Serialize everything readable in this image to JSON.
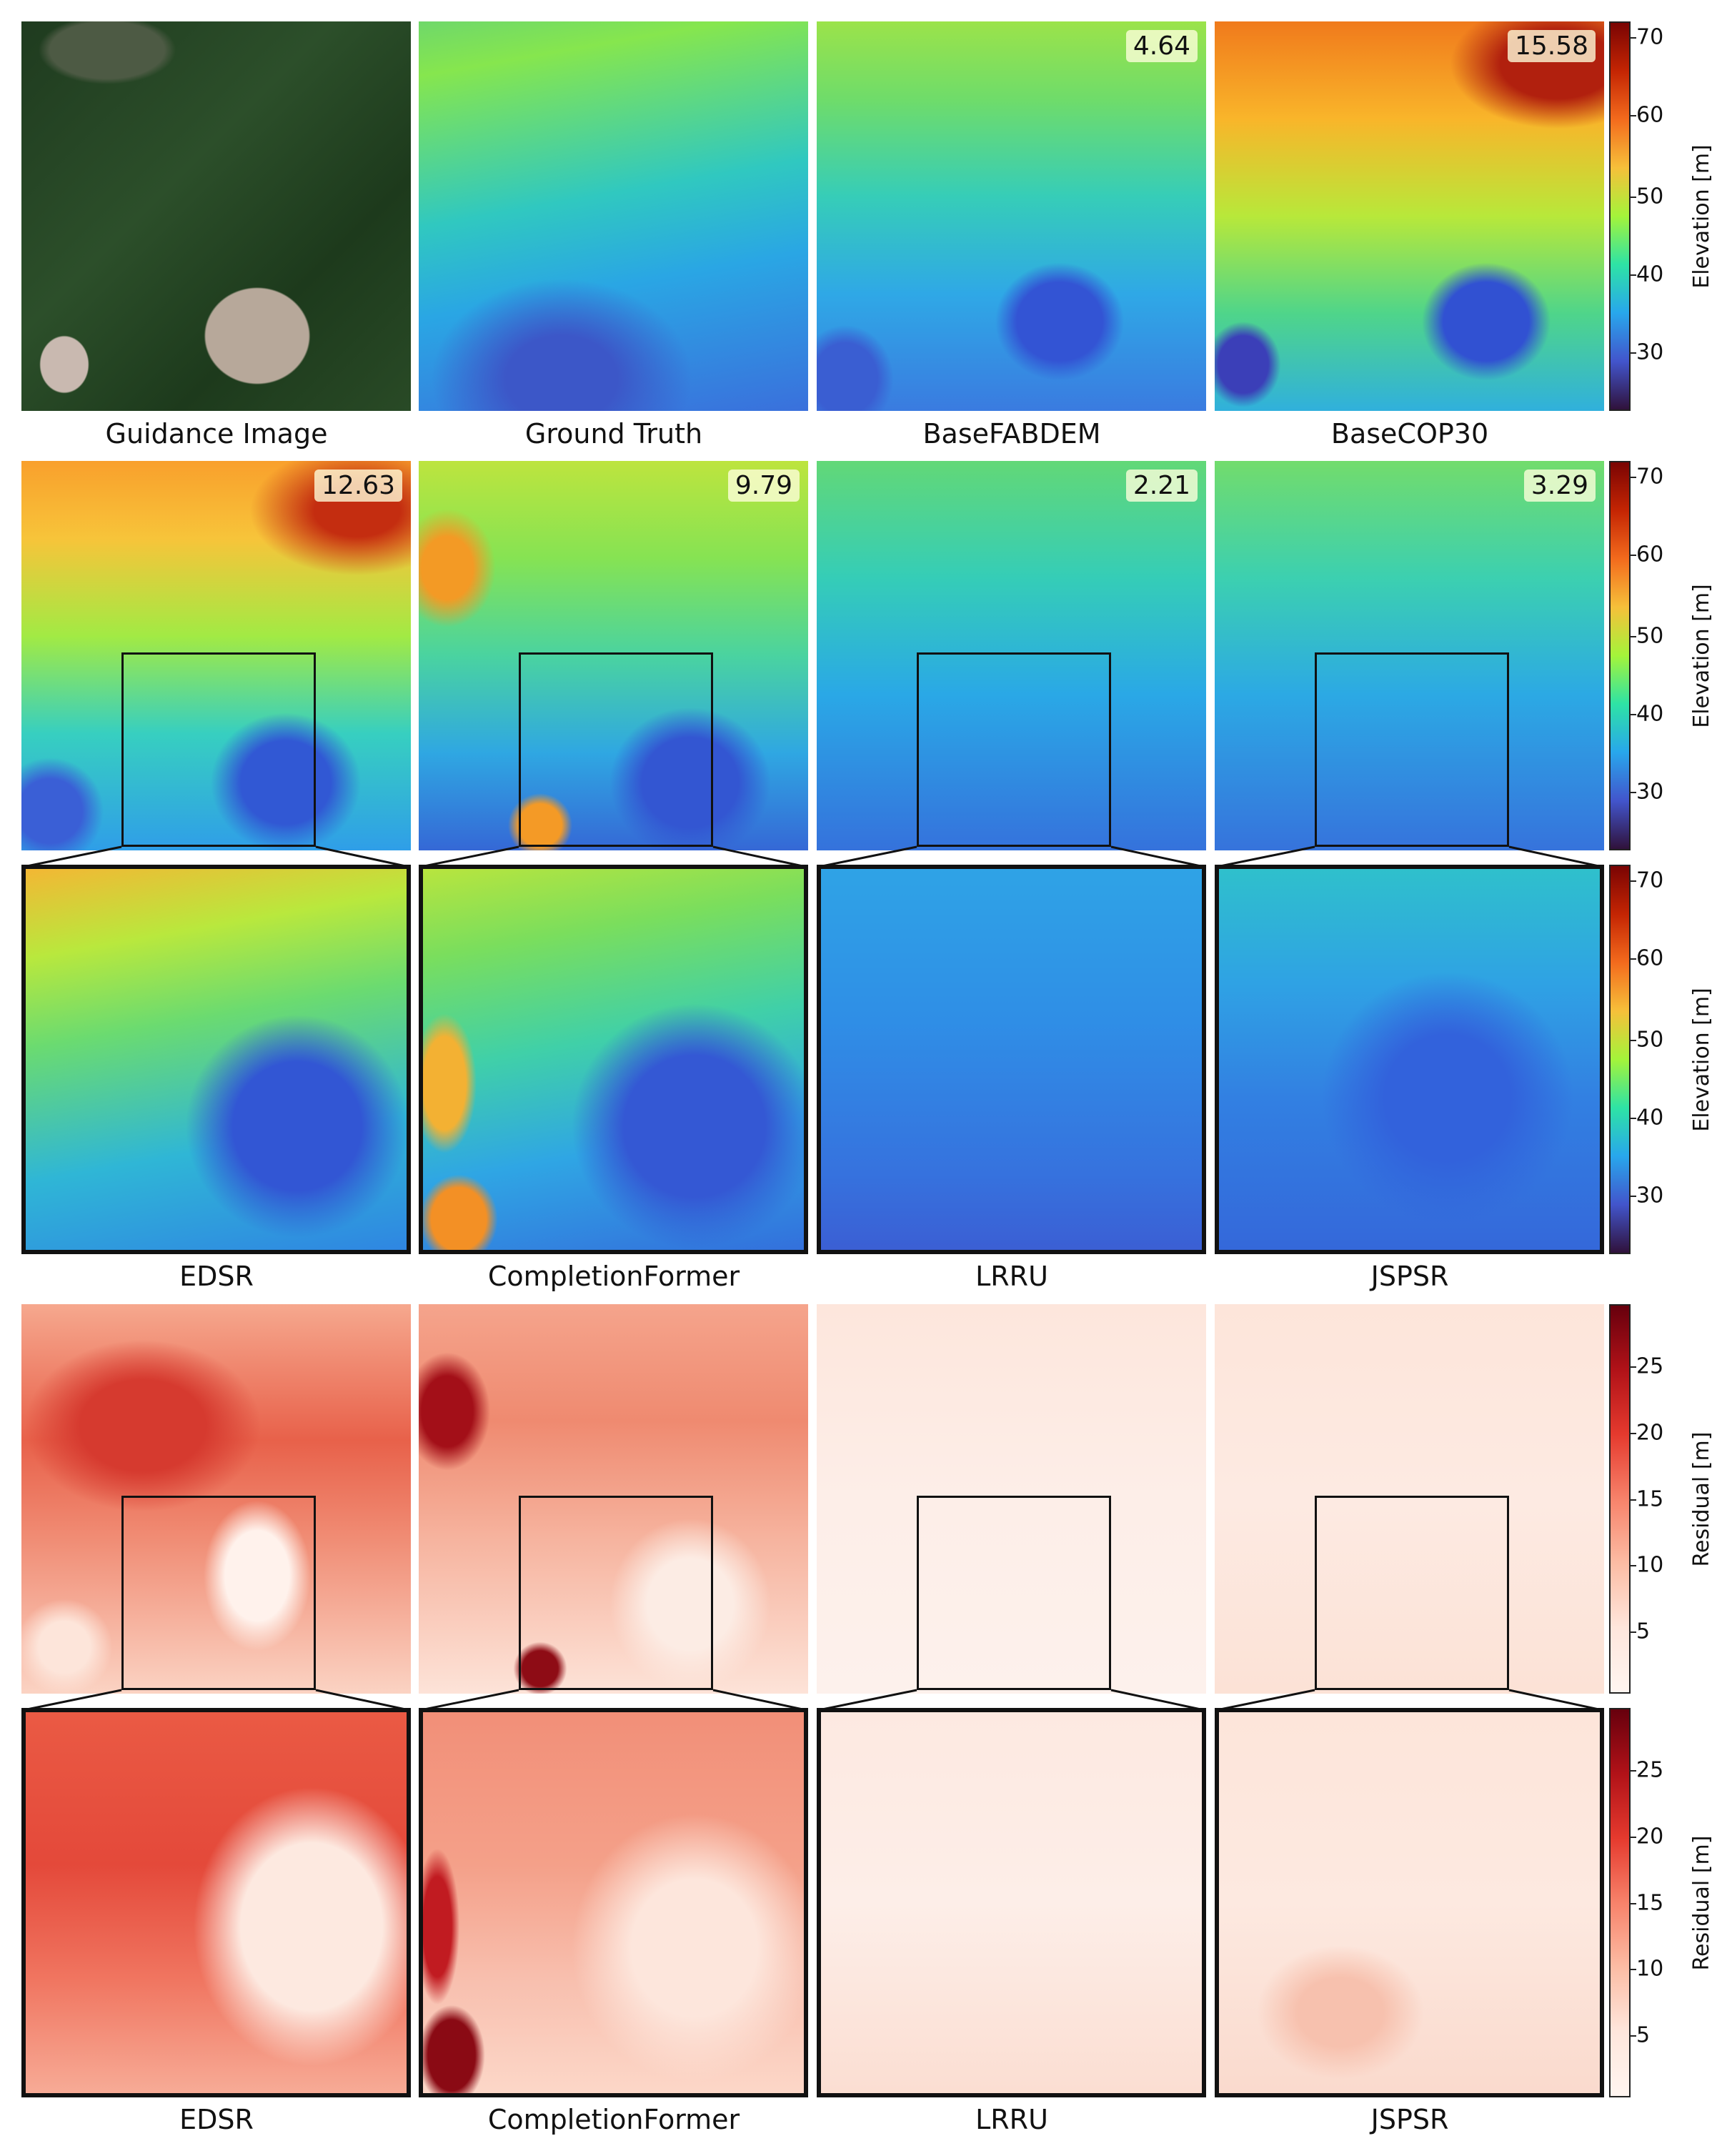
{
  "row1_captions": [
    "Guidance Image",
    "Ground Truth",
    "BaseFABDEM",
    "BaseCOP30"
  ],
  "row1_badges": {
    "basefabdem": "4.64",
    "basecop30": "15.58"
  },
  "row2_badges": {
    "edsr": "12.63",
    "completionformer": "9.79",
    "lrru": "2.21",
    "jspsr": "3.29"
  },
  "row3_captions": [
    "EDSR",
    "CompletionFormer",
    "LRRU",
    "JSPSR"
  ],
  "row5_captions": [
    "EDSR",
    "CompletionFormer",
    "LRRU",
    "JSPSR"
  ],
  "elevation_colorbar": {
    "label": "Elevation [m]",
    "ticks": [
      "70",
      "60",
      "50",
      "40",
      "30"
    ]
  },
  "residual_colorbar": {
    "label": "Residual [m]",
    "ticks": [
      "25",
      "20",
      "15",
      "10",
      "5"
    ]
  }
}
